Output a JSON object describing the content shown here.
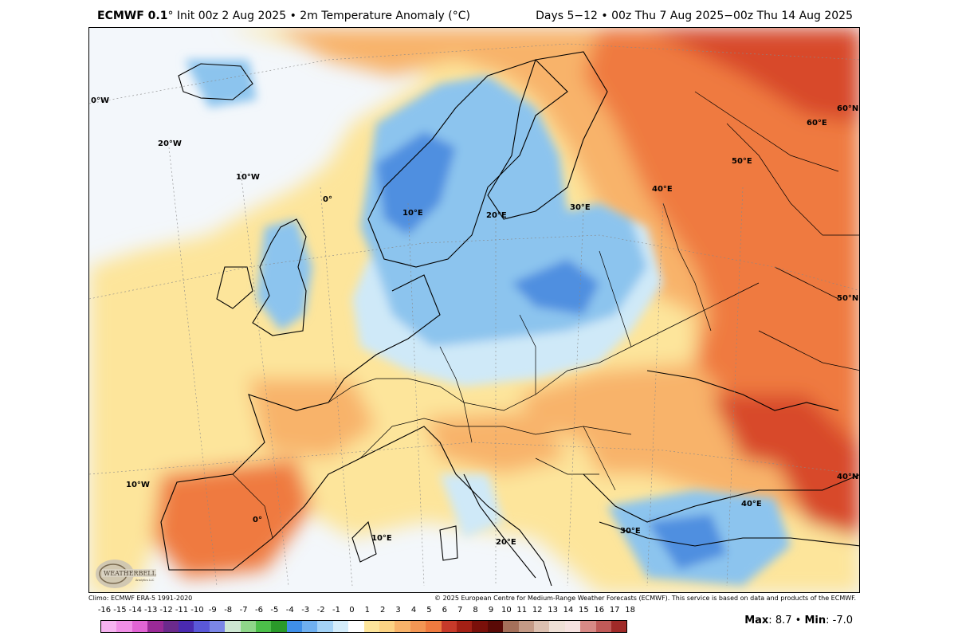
{
  "header": {
    "model": "ECMWF 0.1",
    "degree_symbol": "°",
    "title_rest": "Init 00z 2 Aug 2025 • 2m Temperature Anomaly (°C)",
    "valid_range": "Days 5−12 • 00z Thu 7 Aug 2025−00z Thu 14 Aug 2025"
  },
  "map": {
    "region": "Europe",
    "variable": "2m Temperature Anomaly",
    "units": "°C",
    "grid_labels": [
      "0°W",
      "20°W",
      "10°W",
      "0°",
      "10°E",
      "20°E",
      "30°E",
      "40°E",
      "50°E",
      "60°E",
      "60°N",
      "50°N",
      "10°W",
      "0°",
      "10°E",
      "20°E",
      "30°E",
      "40°E",
      "40°N"
    ],
    "colors": {
      "ocean_neutral": "#f3f7fb",
      "warm_light": "#fde59b",
      "warm_mid": "#f8b36a",
      "warm_strong": "#ef7a3f",
      "warm_very_strong": "#d84a2a",
      "cool_light": "#cfe9f8",
      "cool_mid": "#8cc4ee",
      "cool_strong": "#4f8fe0"
    }
  },
  "logo": {
    "text_main": "WEATHERBELL",
    "text_sub": "Analytics LLC"
  },
  "credits": {
    "climo": "Climo: ECMWF ERA-5 1991-2020",
    "copyright": "© 2025 European Centre for Medium-Range Weather Forecasts (ECMWF). This service is based on data and products of the ECMWF."
  },
  "colorbar": {
    "ticks": [
      "-16",
      "-15",
      "-14",
      "-13",
      "-12",
      "-11",
      "-10",
      "-9",
      "-8",
      "-7",
      "-6",
      "-5",
      "-4",
      "-3",
      "-2",
      "-1",
      "0",
      "1",
      "2",
      "3",
      "4",
      "5",
      "6",
      "7",
      "8",
      "9",
      "10",
      "11",
      "12",
      "13",
      "14",
      "15",
      "16",
      "17",
      "18"
    ],
    "colors": [
      "#f6b3f0",
      "#f08fe6",
      "#e164d4",
      "#c43fb5",
      "#9a2a97",
      "#6b2a8c",
      "#4a2ab0",
      "#5a58d8",
      "#7b86e6",
      "#a9b5f0",
      "#cde6d2",
      "#8fd68a",
      "#4cbf4a",
      "#2a9a2a",
      "#1f6fd6",
      "#3f8fe8",
      "#6fb0f0",
      "#a3d2f6",
      "#d3ecfa",
      "#ffffff",
      "#fff2b0",
      "#fde59b",
      "#fcd384",
      "#f8b36a",
      "#f39654",
      "#ef7a3f",
      "#e2593a",
      "#c73a2a",
      "#a32015",
      "#7a100a",
      "#5a0a06",
      "#7a3a2a",
      "#a5705a",
      "#c49a86",
      "#dcc0b0",
      "#efe0d6",
      "#f6e2e0",
      "#ecbcb8",
      "#d88a86",
      "#c05a58",
      "#a02a28"
    ],
    "value_range": [
      -16,
      18
    ]
  },
  "stats": {
    "max_label": "Max",
    "max_value": "8.7",
    "separator": "•",
    "min_label": "Min",
    "min_value": "-7.0"
  }
}
